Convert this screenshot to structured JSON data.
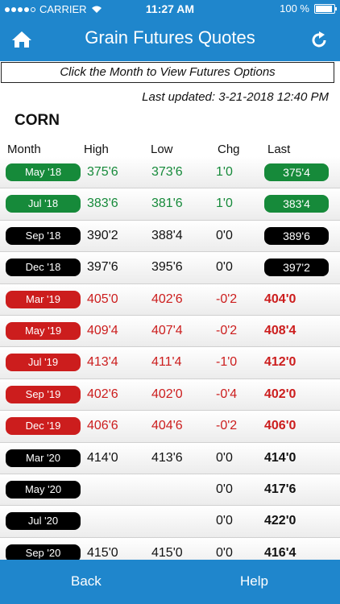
{
  "status_bar": {
    "carrier": "CARRIER",
    "time": "11:27 AM",
    "battery": "100 %"
  },
  "header": {
    "title": "Grain Futures Quotes",
    "home_icon": "home-icon",
    "refresh_icon": "refresh-icon"
  },
  "subtitle": "Click the Month to View Futures Options",
  "last_updated": "Last updated: 3-21-2018 12:40 PM",
  "commodity": "CORN",
  "columns": {
    "month": "Month",
    "high": "High",
    "low": "Low",
    "chg": "Chg",
    "last": "Last"
  },
  "colors": {
    "green": "#168a3a",
    "black": "#000000",
    "red": "#cc1d1d",
    "blue": "#1f86cc"
  },
  "rows": [
    {
      "month": "May '18",
      "high": "375'6",
      "low": "373'6",
      "chg": "1'0",
      "last": "375'4",
      "color": "green",
      "pill_last": true
    },
    {
      "month": "Jul '18",
      "high": "383'6",
      "low": "381'6",
      "chg": "1'0",
      "last": "383'4",
      "color": "green",
      "pill_last": true
    },
    {
      "month": "Sep '18",
      "high": "390'2",
      "low": "388'4",
      "chg": "0'0",
      "last": "389'6",
      "color": "black",
      "pill_last": true
    },
    {
      "month": "Dec '18",
      "high": "397'6",
      "low": "395'6",
      "chg": "0'0",
      "last": "397'2",
      "color": "black",
      "pill_last": true
    },
    {
      "month": "Mar '19",
      "high": "405'0",
      "low": "402'6",
      "chg": "-0'2",
      "last": "404'0",
      "color": "red",
      "pill_last": false
    },
    {
      "month": "May '19",
      "high": "409'4",
      "low": "407'4",
      "chg": "-0'2",
      "last": "408'4",
      "color": "red",
      "pill_last": false
    },
    {
      "month": "Jul '19",
      "high": "413'4",
      "low": "411'4",
      "chg": "-1'0",
      "last": "412'0",
      "color": "red",
      "pill_last": false
    },
    {
      "month": "Sep '19",
      "high": "402'6",
      "low": "402'0",
      "chg": "-0'4",
      "last": "402'0",
      "color": "red",
      "pill_last": false
    },
    {
      "month": "Dec '19",
      "high": "406'6",
      "low": "404'6",
      "chg": "-0'2",
      "last": "406'0",
      "color": "red",
      "pill_last": false
    },
    {
      "month": "Mar '20",
      "high": "414'0",
      "low": "413'6",
      "chg": "0'0",
      "last": "414'0",
      "color": "black",
      "pill_last": false
    },
    {
      "month": "May '20",
      "high": "",
      "low": "",
      "chg": "0'0",
      "last": "417'6",
      "color": "black",
      "pill_last": false
    },
    {
      "month": "Jul '20",
      "high": "",
      "low": "",
      "chg": "0'0",
      "last": "422'0",
      "color": "black",
      "pill_last": false
    },
    {
      "month": "Sep '20",
      "high": "415'0",
      "low": "415'0",
      "chg": "0'0",
      "last": "416'4",
      "color": "black",
      "pill_last": false
    }
  ],
  "footer": {
    "back": "Back",
    "help": "Help"
  }
}
